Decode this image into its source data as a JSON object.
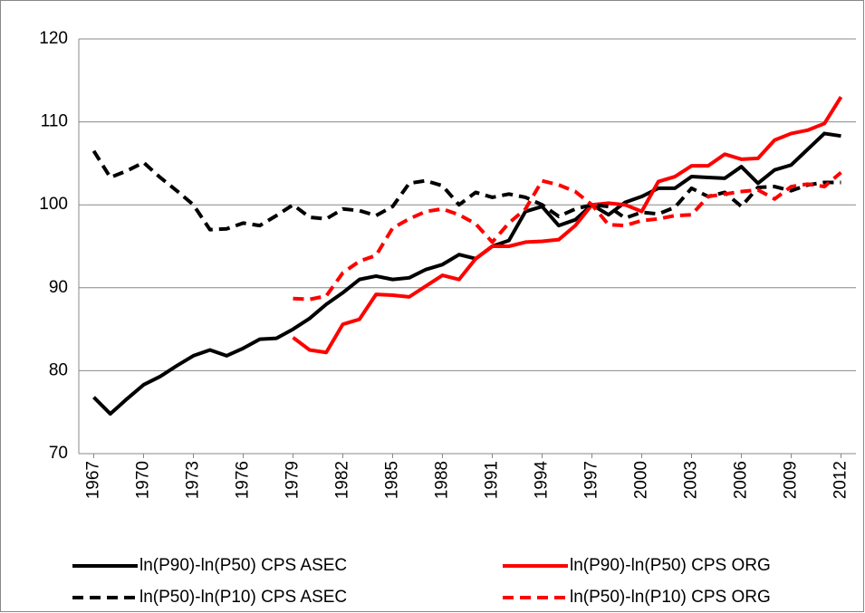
{
  "chart_data": {
    "type": "line",
    "x": [
      1967,
      1968,
      1969,
      1970,
      1971,
      1972,
      1973,
      1974,
      1975,
      1976,
      1977,
      1978,
      1979,
      1980,
      1981,
      1982,
      1983,
      1984,
      1985,
      1986,
      1987,
      1988,
      1989,
      1990,
      1991,
      1992,
      1993,
      1994,
      1995,
      1996,
      1997,
      1998,
      1999,
      2000,
      2001,
      2002,
      2003,
      2004,
      2005,
      2006,
      2007,
      2008,
      2009,
      2010,
      2011,
      2012
    ],
    "series": [
      {
        "name": "ln(P90)-ln(P50) CPS ASEC",
        "color": "#000000",
        "style": "solid",
        "values": [
          76.8,
          74.8,
          76.6,
          78.3,
          79.3,
          80.6,
          81.8,
          82.5,
          81.8,
          82.7,
          83.8,
          83.9,
          85.0,
          86.3,
          88.0,
          89.4,
          91.0,
          91.4,
          91.0,
          91.2,
          92.2,
          92.8,
          94.0,
          93.5,
          95.0,
          95.7,
          99.2,
          99.8,
          97.5,
          98.2,
          100.0,
          98.8,
          100.3,
          101.0,
          102.0,
          102.0,
          103.4,
          103.3,
          103.2,
          104.6,
          102.6,
          104.2,
          104.8,
          106.7,
          108.6,
          108.3
        ]
      },
      {
        "name": "ln(P90)-ln(P50) CPS ORG",
        "color": "#ff0000",
        "style": "solid",
        "values": [
          null,
          null,
          null,
          null,
          null,
          null,
          null,
          null,
          null,
          null,
          null,
          null,
          84.0,
          82.5,
          82.2,
          85.6,
          86.2,
          89.2,
          89.1,
          88.9,
          90.2,
          91.5,
          91.0,
          93.5,
          95.0,
          95.0,
          95.5,
          95.6,
          95.8,
          97.5,
          100.0,
          100.2,
          100.0,
          99.2,
          102.8,
          103.4,
          104.7,
          104.7,
          106.1,
          105.5,
          105.6,
          107.8,
          108.6,
          109.0,
          109.8,
          113.0
        ]
      },
      {
        "name": "ln(P50)-ln(P10) CPS ASEC",
        "color": "#000000",
        "style": "dashed",
        "values": [
          106.5,
          103.3,
          104.1,
          105.1,
          103.3,
          101.7,
          100.0,
          97.0,
          97.1,
          97.8,
          97.5,
          98.7,
          100.0,
          98.5,
          98.3,
          99.5,
          99.3,
          98.7,
          99.8,
          102.6,
          102.9,
          102.3,
          100.0,
          101.5,
          100.9,
          101.3,
          100.9,
          100.0,
          98.6,
          99.5,
          100.0,
          99.8,
          98.4,
          99.1,
          98.9,
          99.7,
          102.0,
          101.0,
          101.5,
          99.8,
          102.1,
          102.2,
          101.7,
          102.4,
          102.7,
          102.7
        ]
      },
      {
        "name": "ln(P50)-ln(P10) CPS ORG",
        "color": "#ff0000",
        "style": "dashed",
        "values": [
          null,
          null,
          null,
          null,
          null,
          null,
          null,
          null,
          null,
          null,
          null,
          null,
          88.7,
          88.6,
          89.0,
          91.8,
          93.2,
          93.9,
          97.2,
          98.3,
          99.2,
          99.5,
          98.8,
          97.7,
          95.5,
          97.8,
          99.5,
          102.9,
          102.4,
          101.6,
          100.0,
          97.6,
          97.5,
          98.1,
          98.3,
          98.7,
          98.8,
          101.0,
          101.3,
          101.6,
          101.8,
          100.7,
          102.2,
          102.5,
          102.2,
          103.9
        ]
      }
    ],
    "xlim": [
      1966.1,
      2012.9
    ],
    "xticks": [
      1967,
      1970,
      1973,
      1976,
      1979,
      1982,
      1985,
      1988,
      1991,
      1994,
      1997,
      2000,
      2003,
      2006,
      2009,
      2012
    ],
    "ylim": [
      70,
      120
    ],
    "yticks": [
      70,
      80,
      90,
      100,
      110,
      120
    ],
    "grid": true
  }
}
